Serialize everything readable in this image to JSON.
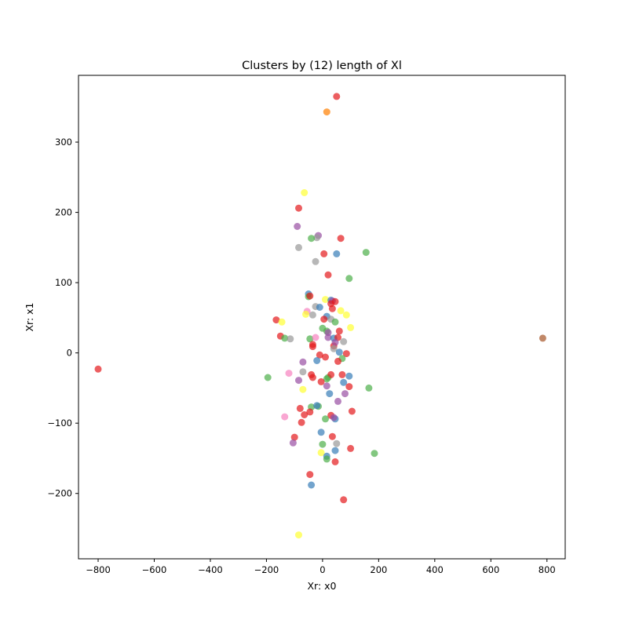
{
  "chart_data": {
    "type": "scatter",
    "title": "Clusters by (12) length of Xl",
    "xlabel": "Xr: x0",
    "ylabel": "Xr: x1",
    "xlim": [
      -870,
      865
    ],
    "ylim": [
      -293,
      395
    ],
    "xticks": [
      -800,
      -600,
      -400,
      -200,
      0,
      200,
      400,
      600,
      800
    ],
    "yticks": [
      -200,
      -100,
      0,
      100,
      200,
      300
    ],
    "xtick_labels": [
      "−800",
      "−600",
      "−400",
      "−200",
      "0",
      "200",
      "400",
      "600",
      "800"
    ],
    "ytick_labels": [
      "−200",
      "−100",
      "0",
      "100",
      "200",
      "300"
    ],
    "grid": false,
    "legend": "none",
    "marker_opacity": 0.7,
    "colors": {
      "red": "#e41a1c",
      "blue": "#377eb8",
      "green": "#4daf4a",
      "purple": "#984ea3",
      "orange": "#ff7f00",
      "yellow": "#ffff33",
      "brown": "#a65628",
      "pink": "#f781bf",
      "gray": "#999999"
    },
    "points": [
      {
        "x": 50,
        "y": 365,
        "c": "red"
      },
      {
        "x": 15,
        "y": 343,
        "c": "orange"
      },
      {
        "x": -65,
        "y": 228,
        "c": "yellow"
      },
      {
        "x": -85,
        "y": 206,
        "c": "red"
      },
      {
        "x": -90,
        "y": 180,
        "c": "purple"
      },
      {
        "x": -15,
        "y": 167,
        "c": "purple"
      },
      {
        "x": -20,
        "y": 164,
        "c": "gray"
      },
      {
        "x": -40,
        "y": 163,
        "c": "green"
      },
      {
        "x": 65,
        "y": 163,
        "c": "red"
      },
      {
        "x": -85,
        "y": 150,
        "c": "gray"
      },
      {
        "x": 50,
        "y": 141,
        "c": "blue"
      },
      {
        "x": 5,
        "y": 141,
        "c": "red"
      },
      {
        "x": 155,
        "y": 143,
        "c": "green"
      },
      {
        "x": -25,
        "y": 130,
        "c": "gray"
      },
      {
        "x": 20,
        "y": 111,
        "c": "red"
      },
      {
        "x": 95,
        "y": 106,
        "c": "green"
      },
      {
        "x": -50,
        "y": 84,
        "c": "blue"
      },
      {
        "x": -50,
        "y": 80,
        "c": "green"
      },
      {
        "x": -45,
        "y": 81,
        "c": "red"
      },
      {
        "x": 10,
        "y": 76,
        "c": "yellow"
      },
      {
        "x": 30,
        "y": 75,
        "c": "blue"
      },
      {
        "x": 35,
        "y": 74,
        "c": "purple"
      },
      {
        "x": 45,
        "y": 73,
        "c": "red"
      },
      {
        "x": 30,
        "y": 70,
        "c": "red"
      },
      {
        "x": -25,
        "y": 66,
        "c": "gray"
      },
      {
        "x": -10,
        "y": 65,
        "c": "blue"
      },
      {
        "x": 35,
        "y": 63,
        "c": "red"
      },
      {
        "x": 65,
        "y": 60,
        "c": "yellow"
      },
      {
        "x": -55,
        "y": 59,
        "c": "pink"
      },
      {
        "x": -60,
        "y": 55,
        "c": "yellow"
      },
      {
        "x": -35,
        "y": 54,
        "c": "gray"
      },
      {
        "x": 85,
        "y": 54,
        "c": "yellow"
      },
      {
        "x": 15,
        "y": 52,
        "c": "blue"
      },
      {
        "x": 5,
        "y": 48,
        "c": "red"
      },
      {
        "x": 30,
        "y": 48,
        "c": "gray"
      },
      {
        "x": 45,
        "y": 44,
        "c": "green"
      },
      {
        "x": -165,
        "y": 47,
        "c": "red"
      },
      {
        "x": -145,
        "y": 44,
        "c": "yellow"
      },
      {
        "x": 0,
        "y": 35,
        "c": "green"
      },
      {
        "x": 100,
        "y": 36,
        "c": "yellow"
      },
      {
        "x": 15,
        "y": 31,
        "c": "green"
      },
      {
        "x": 20,
        "y": 29,
        "c": "purple"
      },
      {
        "x": 60,
        "y": 31,
        "c": "red"
      },
      {
        "x": -150,
        "y": 24,
        "c": "red"
      },
      {
        "x": -135,
        "y": 21,
        "c": "green"
      },
      {
        "x": -115,
        "y": 20,
        "c": "gray"
      },
      {
        "x": -45,
        "y": 20,
        "c": "green"
      },
      {
        "x": -25,
        "y": 22,
        "c": "pink"
      },
      {
        "x": 20,
        "y": 22,
        "c": "purple"
      },
      {
        "x": 40,
        "y": 21,
        "c": "blue"
      },
      {
        "x": 55,
        "y": 22,
        "c": "red"
      },
      {
        "x": 75,
        "y": 16,
        "c": "gray"
      },
      {
        "x": -35,
        "y": 12,
        "c": "red"
      },
      {
        "x": -35,
        "y": 9,
        "c": "red"
      },
      {
        "x": 40,
        "y": 10,
        "c": "red"
      },
      {
        "x": 45,
        "y": 15,
        "c": "purple"
      },
      {
        "x": 40,
        "y": 6,
        "c": "gray"
      },
      {
        "x": 60,
        "y": 1,
        "c": "blue"
      },
      {
        "x": 85,
        "y": -1,
        "c": "red"
      },
      {
        "x": -800,
        "y": -23,
        "c": "red"
      },
      {
        "x": 785,
        "y": 21,
        "c": "brown"
      },
      {
        "x": -10,
        "y": -3,
        "c": "red"
      },
      {
        "x": 10,
        "y": -6,
        "c": "red"
      },
      {
        "x": 70,
        "y": -8,
        "c": "green"
      },
      {
        "x": -20,
        "y": -11,
        "c": "blue"
      },
      {
        "x": -70,
        "y": -13,
        "c": "purple"
      },
      {
        "x": 55,
        "y": -12,
        "c": "red"
      },
      {
        "x": -70,
        "y": -27,
        "c": "gray"
      },
      {
        "x": -120,
        "y": -29,
        "c": "pink"
      },
      {
        "x": -40,
        "y": -31,
        "c": "red"
      },
      {
        "x": -35,
        "y": -35,
        "c": "red"
      },
      {
        "x": 20,
        "y": -35,
        "c": "green"
      },
      {
        "x": 30,
        "y": -31,
        "c": "red"
      },
      {
        "x": 70,
        "y": -31,
        "c": "red"
      },
      {
        "x": 95,
        "y": -33,
        "c": "blue"
      },
      {
        "x": 15,
        "y": -37,
        "c": "green"
      },
      {
        "x": -195,
        "y": -35,
        "c": "green"
      },
      {
        "x": -85,
        "y": -39,
        "c": "purple"
      },
      {
        "x": -5,
        "y": -41,
        "c": "red"
      },
      {
        "x": 75,
        "y": -42,
        "c": "blue"
      },
      {
        "x": 15,
        "y": -47,
        "c": "purple"
      },
      {
        "x": 95,
        "y": -48,
        "c": "red"
      },
      {
        "x": 165,
        "y": -50,
        "c": "green"
      },
      {
        "x": -70,
        "y": -52,
        "c": "yellow"
      },
      {
        "x": 25,
        "y": -58,
        "c": "blue"
      },
      {
        "x": 80,
        "y": -58,
        "c": "purple"
      },
      {
        "x": 55,
        "y": -69,
        "c": "purple"
      },
      {
        "x": -40,
        "y": -77,
        "c": "green"
      },
      {
        "x": -15,
        "y": -76,
        "c": "green"
      },
      {
        "x": -20,
        "y": -75,
        "c": "blue"
      },
      {
        "x": -80,
        "y": -79,
        "c": "red"
      },
      {
        "x": -45,
        "y": -84,
        "c": "red"
      },
      {
        "x": 105,
        "y": -83,
        "c": "red"
      },
      {
        "x": -65,
        "y": -88,
        "c": "red"
      },
      {
        "x": 30,
        "y": -89,
        "c": "red"
      },
      {
        "x": 45,
        "y": -94,
        "c": "blue"
      },
      {
        "x": 10,
        "y": -94,
        "c": "green"
      },
      {
        "x": 40,
        "y": -92,
        "c": "purple"
      },
      {
        "x": -135,
        "y": -91,
        "c": "pink"
      },
      {
        "x": -75,
        "y": -99,
        "c": "red"
      },
      {
        "x": -5,
        "y": -113,
        "c": "blue"
      },
      {
        "x": -100,
        "y": -120,
        "c": "red"
      },
      {
        "x": 35,
        "y": -119,
        "c": "red"
      },
      {
        "x": -105,
        "y": -128,
        "c": "purple"
      },
      {
        "x": 0,
        "y": -130,
        "c": "green"
      },
      {
        "x": 50,
        "y": -129,
        "c": "gray"
      },
      {
        "x": 100,
        "y": -136,
        "c": "red"
      },
      {
        "x": 45,
        "y": -139,
        "c": "blue"
      },
      {
        "x": -5,
        "y": -142,
        "c": "yellow"
      },
      {
        "x": 185,
        "y": -143,
        "c": "green"
      },
      {
        "x": 15,
        "y": -147,
        "c": "blue"
      },
      {
        "x": 15,
        "y": -151,
        "c": "green"
      },
      {
        "x": 45,
        "y": -155,
        "c": "red"
      },
      {
        "x": -45,
        "y": -173,
        "c": "red"
      },
      {
        "x": -40,
        "y": -188,
        "c": "blue"
      },
      {
        "x": 75,
        "y": -209,
        "c": "red"
      },
      {
        "x": -85,
        "y": -259,
        "c": "yellow"
      }
    ]
  }
}
